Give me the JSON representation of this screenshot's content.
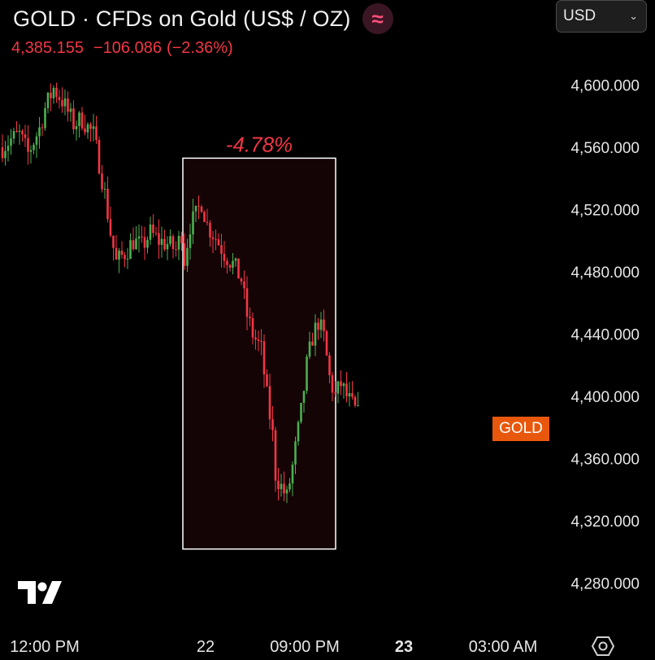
{
  "header": {
    "title": "GOLD · CFDs on Gold (US$ / OZ)",
    "delay_symbol": "≈",
    "last_price": "4,385.155",
    "change": "−106.086",
    "change_pct": "(−2.36%)"
  },
  "currency": {
    "selected": "USD"
  },
  "symbol_tag": "GOLD",
  "colors": {
    "background": "#000000",
    "up": "#4caf50",
    "down": "#f23645",
    "measure_fill": "#140406",
    "measure_border": "#ffffff",
    "measure_label": "#f23645",
    "symbol_tag": "#e8580c"
  },
  "chart_data": {
    "type": "candlestick",
    "y_ticks": [
      "4,280.000",
      "4,320.000",
      "4,360.000",
      "4,400.000",
      "4,440.000",
      "4,480.000",
      "4,520.000",
      "4,560.000",
      "4,600.000"
    ],
    "y_tick_values": [
      4280,
      4320,
      4360,
      4400,
      4440,
      4480,
      4520,
      4560,
      4600
    ],
    "ylim": [
      4260,
      4618
    ],
    "x_ticks": [
      {
        "label": "12:00 PM",
        "bold": false
      },
      {
        "label": "22",
        "bold": false
      },
      {
        "label": "09:00 PM",
        "bold": false
      },
      {
        "label": "23",
        "bold": true
      },
      {
        "label": "03:00 AM",
        "bold": false
      }
    ],
    "price_path": [
      [
        0,
        4560
      ],
      [
        3,
        4565
      ],
      [
        6,
        4568
      ],
      [
        9,
        4556
      ],
      [
        13,
        4572
      ],
      [
        15,
        4585
      ],
      [
        18,
        4598
      ],
      [
        21,
        4590
      ],
      [
        25,
        4575
      ],
      [
        28,
        4578
      ],
      [
        32,
        4568
      ],
      [
        34,
        4550
      ],
      [
        36,
        4530
      ],
      [
        38,
        4505
      ],
      [
        40,
        4486
      ],
      [
        43,
        4492
      ],
      [
        46,
        4500
      ],
      [
        49,
        4496
      ],
      [
        52,
        4505
      ],
      [
        55,
        4500
      ],
      [
        58,
        4498
      ],
      [
        61,
        4494
      ],
      [
        63,
        4505
      ],
      [
        64,
        4488
      ],
      [
        66,
        4510
      ],
      [
        68,
        4516
      ],
      [
        70,
        4525
      ],
      [
        72,
        4510
      ],
      [
        75,
        4502
      ],
      [
        78,
        4492
      ],
      [
        81,
        4485
      ],
      [
        84,
        4475
      ],
      [
        86,
        4452
      ],
      [
        88,
        4440
      ],
      [
        91,
        4430
      ],
      [
        93,
        4400
      ],
      [
        95,
        4375
      ],
      [
        96,
        4350
      ],
      [
        98,
        4342
      ],
      [
        100,
        4335
      ],
      [
        102,
        4355
      ],
      [
        105,
        4390
      ],
      [
        107,
        4420
      ],
      [
        109,
        4438
      ],
      [
        111,
        4448
      ],
      [
        113,
        4438
      ],
      [
        115,
        4412
      ],
      [
        117,
        4400
      ],
      [
        119,
        4408
      ],
      [
        121,
        4400
      ],
      [
        123,
        4394
      ],
      [
        125,
        4388
      ]
    ],
    "measure": {
      "label": "-4.78%",
      "x_start": 64,
      "x_end": 116,
      "y_top": 4553,
      "y_bottom": 4302
    }
  }
}
